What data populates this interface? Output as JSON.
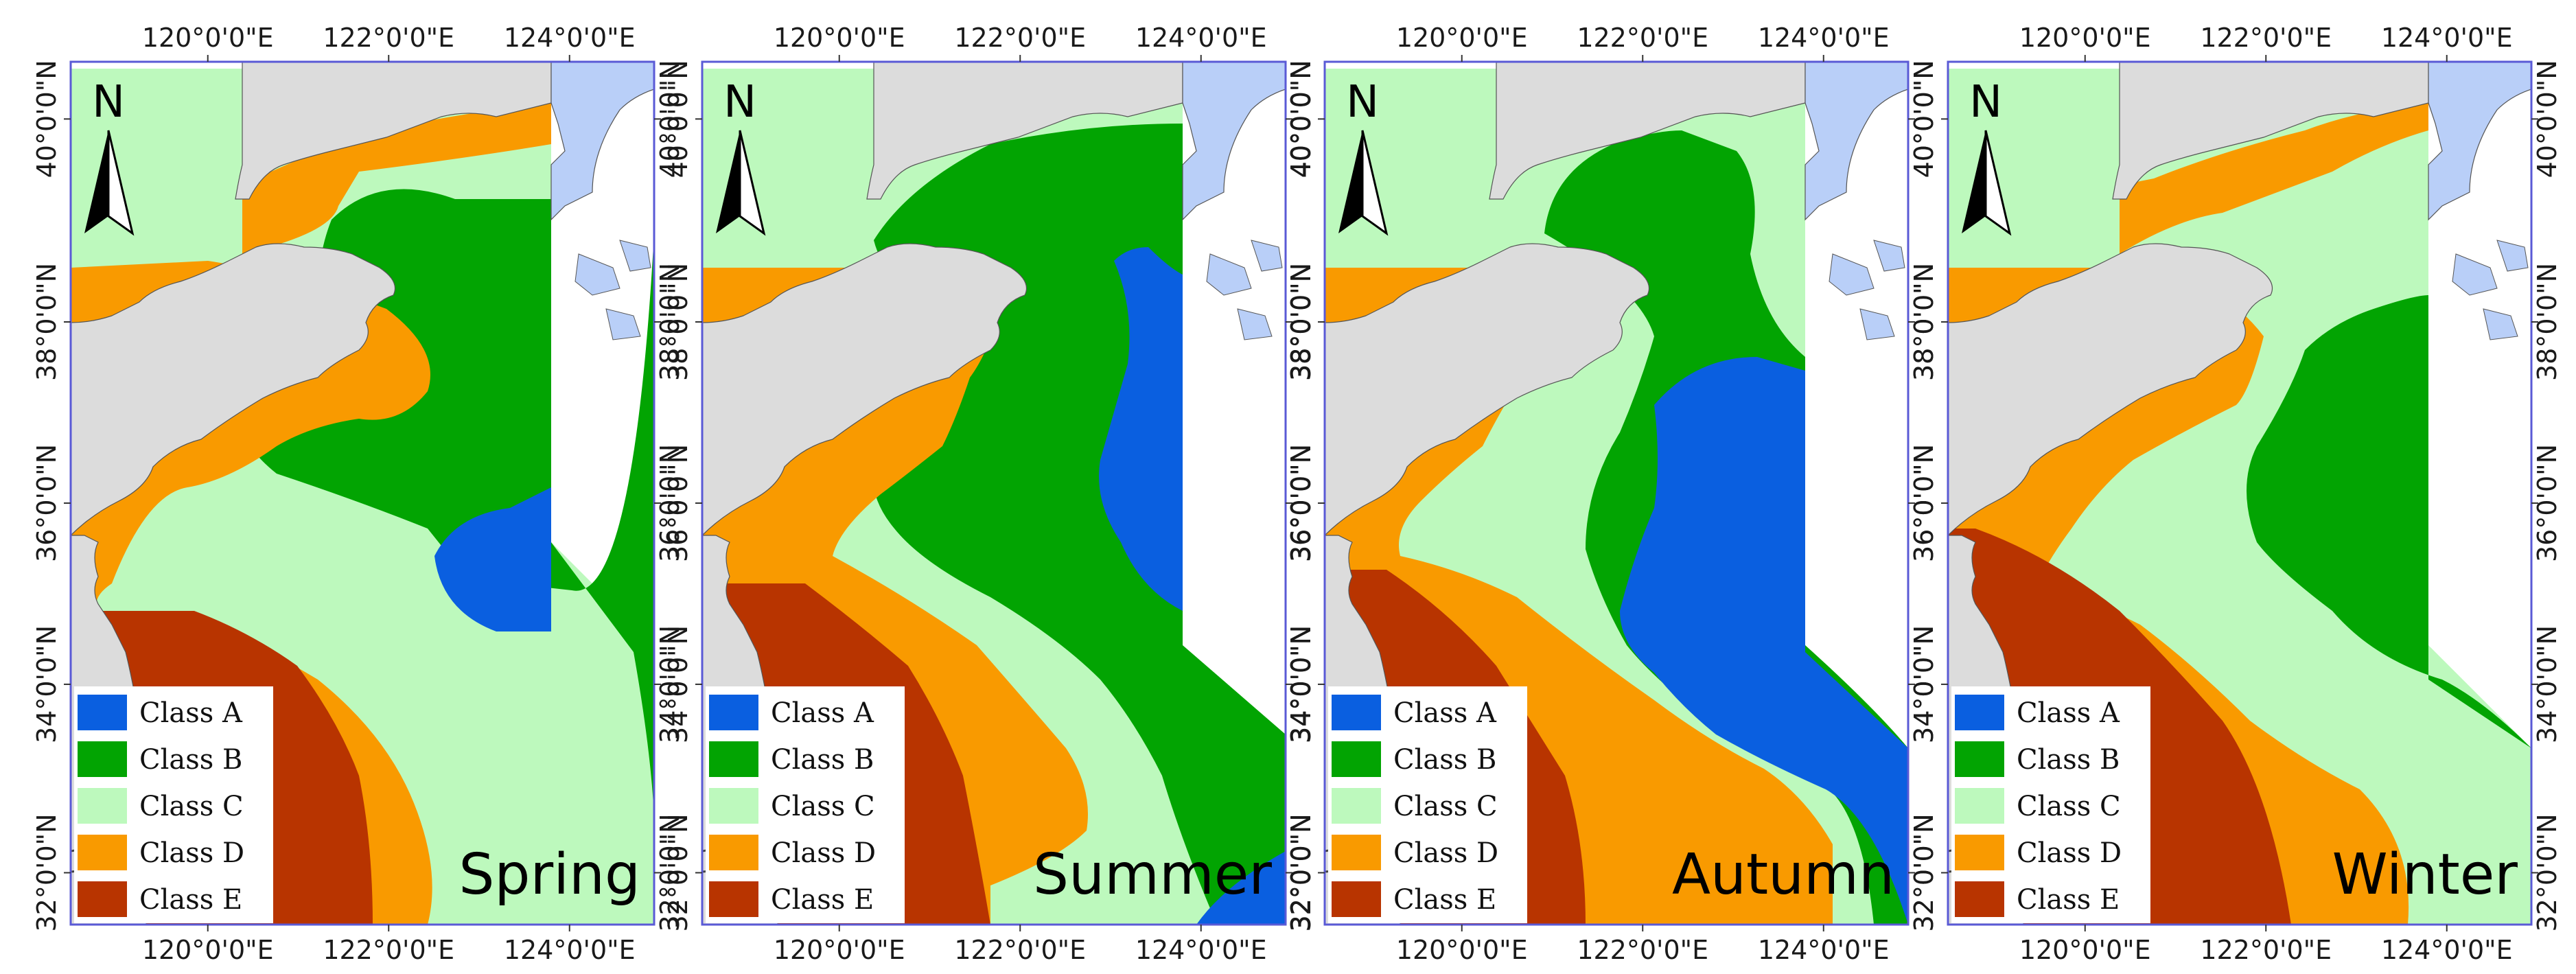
{
  "panels": [
    {
      "season": "Spring"
    },
    {
      "season": "Summer"
    },
    {
      "season": "Autumn"
    },
    {
      "season": "Winter"
    }
  ],
  "north_arrow_label": "N",
  "longitude_ticks": [
    "120°0'0\"E",
    "122°0'0\"E",
    "124°0'0\"E"
  ],
  "latitude_ticks": [
    "40°0'0\"N",
    "38°0'0\"N",
    "36°0'0\"N",
    "34°0'0\"N",
    "32°0'0\"N"
  ],
  "legend": [
    {
      "label": "Class A",
      "color": "#0a5fe0"
    },
    {
      "label": "Class B",
      "color": "#02a402"
    },
    {
      "label": "Class C",
      "color": "#bdf9bd"
    },
    {
      "label": "Class D",
      "color": "#f99a00"
    },
    {
      "label": "Class E",
      "color": "#b83400"
    }
  ],
  "colors": {
    "land": "#dcdcdc",
    "foreign_water": "#b9cff8",
    "frame": "#5a5ad6",
    "coast": "#444444"
  }
}
